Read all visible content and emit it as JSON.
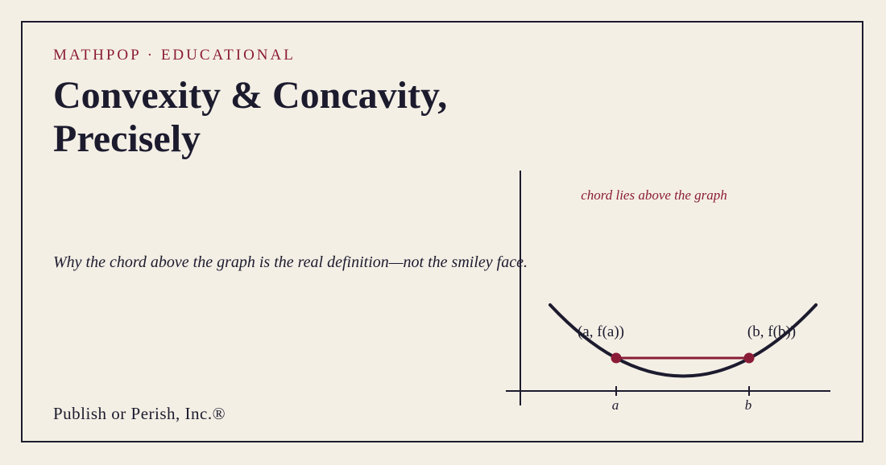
{
  "header": {
    "eyebrow": "MATHPOP · EDUCATIONAL",
    "title": "Convexity & Concavity, Precisely",
    "subtitle": "Why the chord above the graph is the real definition—not the smiley face."
  },
  "footer": {
    "publisher": "Publish or Perish, Inc.®"
  },
  "diagram": {
    "annotation": "chord lies above the graph",
    "point_a_label": "(a, f(a))",
    "point_b_label": "(b, f(b))",
    "tick_a": "a",
    "tick_b": "b"
  },
  "colors": {
    "background": "#f4efe5",
    "ink": "#1c1b2e",
    "accent": "#8a1c38"
  }
}
